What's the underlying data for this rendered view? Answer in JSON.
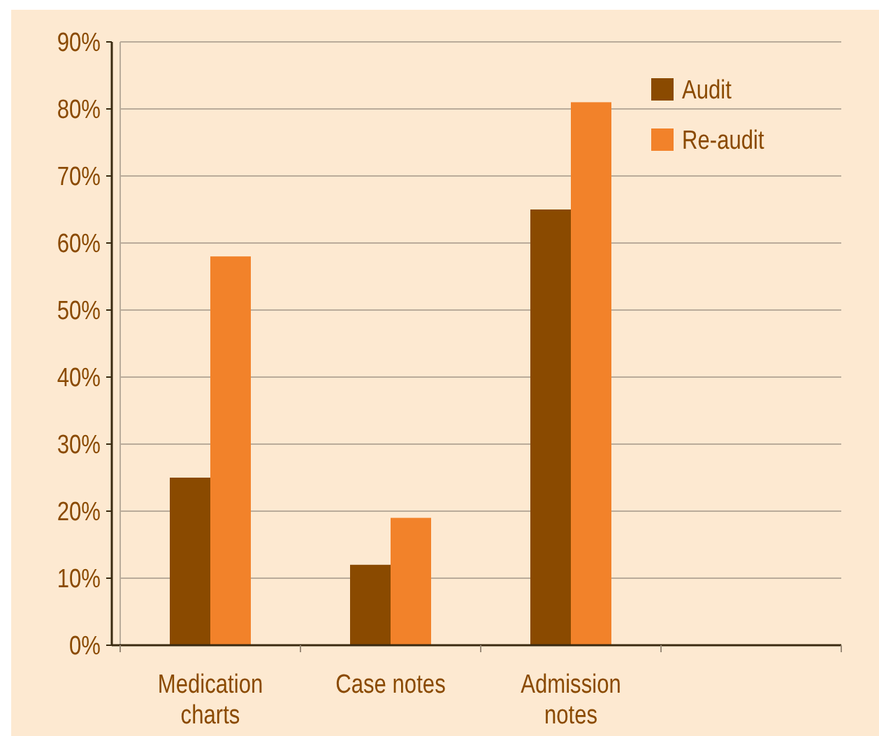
{
  "chart_data": {
    "type": "bar",
    "categories": [
      "Medication charts",
      "Case notes",
      "Admission notes",
      null
    ],
    "series": [
      {
        "name": "Audit",
        "color": "#8a4a00",
        "values": [
          25,
          12,
          65,
          null
        ]
      },
      {
        "name": "Re-audit",
        "color": "#f2822a",
        "values": [
          58,
          19,
          81,
          null
        ]
      }
    ],
    "ylim": [
      0,
      90
    ],
    "yticks": [
      {
        "value": 0,
        "label": "0%"
      },
      {
        "value": 10,
        "label": "10%"
      },
      {
        "value": 20,
        "label": "20%"
      },
      {
        "value": 30,
        "label": "30%"
      },
      {
        "value": 40,
        "label": "40%"
      },
      {
        "value": 50,
        "label": "50%"
      },
      {
        "value": 60,
        "label": "60%"
      },
      {
        "value": 70,
        "label": "70%"
      },
      {
        "value": 80,
        "label": "80%"
      },
      {
        "value": 90,
        "label": "90%"
      }
    ],
    "grid": "y",
    "legend": "top right"
  }
}
